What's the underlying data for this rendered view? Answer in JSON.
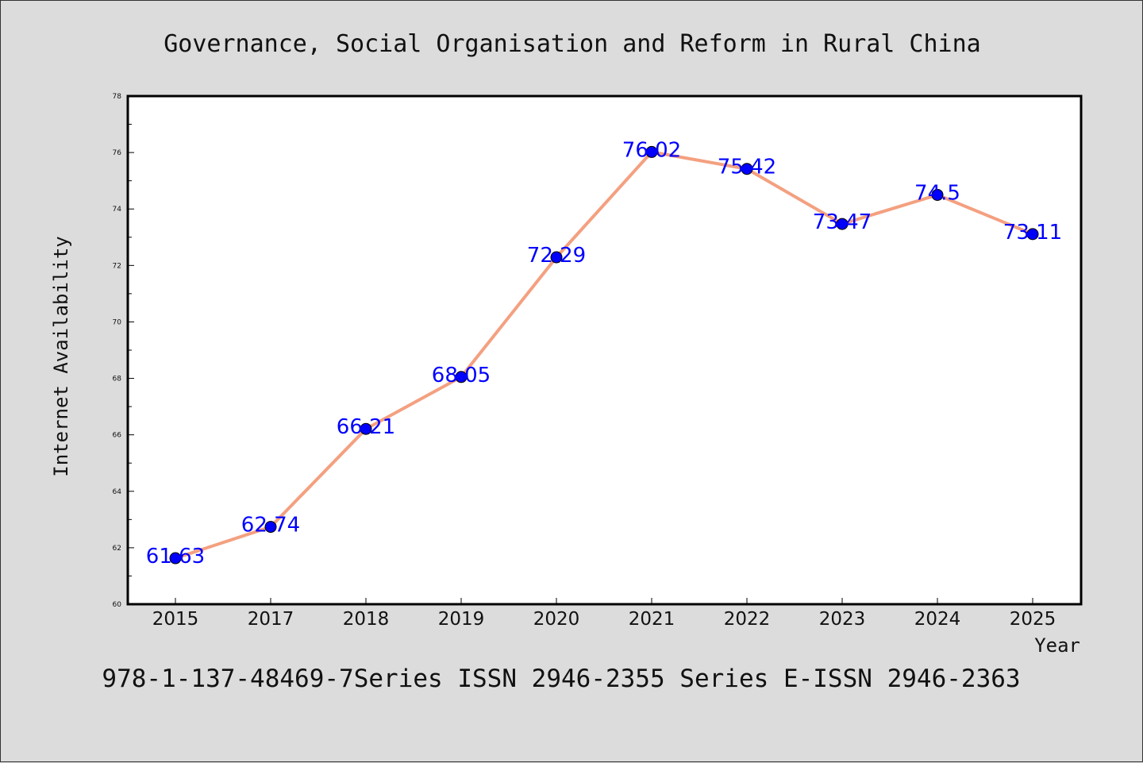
{
  "chart_data": {
    "type": "line",
    "title": "Governance, Social Organisation and Reform in Rural China",
    "xlabel": "Year",
    "ylabel": "Internet Availability",
    "footer": "978-1-137-48469-7Series ISSN 2946-2355 Series E-ISSN 2946-2363",
    "categories": [
      "2015",
      "2017",
      "2018",
      "2019",
      "2020",
      "2021",
      "2022",
      "2023",
      "2024",
      "2025"
    ],
    "series": [
      {
        "values": [
          61.63,
          62.74,
          66.21,
          68.05,
          72.29,
          76.02,
          75.42,
          73.47,
          74.5,
          73.11
        ],
        "data_labels": [
          "61.63",
          "62.74",
          "66.21",
          "68.05",
          "72.29",
          "76.02",
          "75.42",
          "73.47",
          "74.5",
          "73.11"
        ]
      }
    ],
    "ylim": [
      60,
      78
    ],
    "yticks": [
      "60",
      "62",
      "64",
      "66",
      "68",
      "70",
      "72",
      "74",
      "76",
      "78"
    ],
    "grid": false,
    "colors": {
      "line": "#f4a080",
      "marker": "#0000ff",
      "label": "#0000ff",
      "background": "#dcdcdc",
      "plot_bg": "#ffffff"
    }
  }
}
